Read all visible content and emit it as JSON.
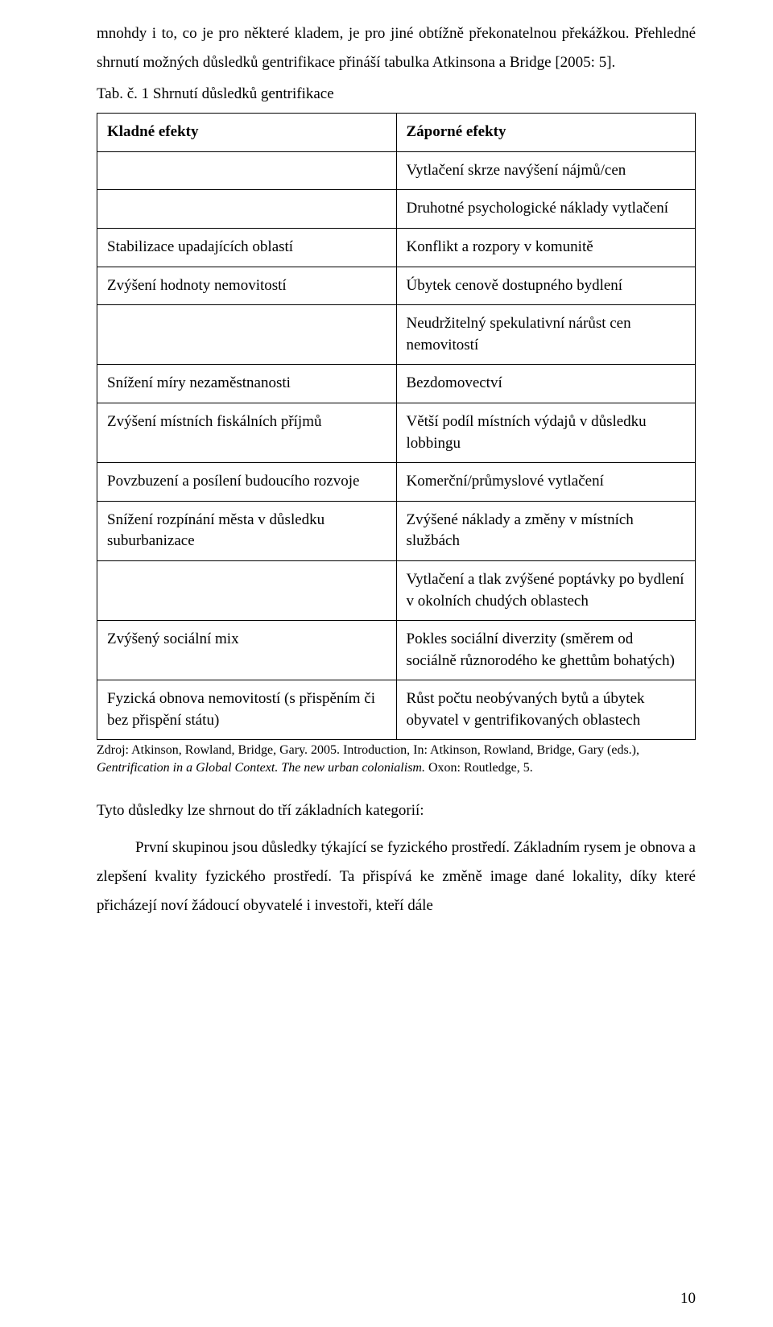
{
  "intro": {
    "p1": "mnohdy i to, co je pro některé kladem, je pro jiné obtížně překonatelnou překážkou. Přehledné shrnutí možných důsledků gentrifikace přináší tabulka Atkinsona a Bridge [2005: 5]."
  },
  "tabcaption": "Tab. č. 1  Shrnutí důsledků gentrifikace",
  "table": {
    "header_left": "Kladné efekty",
    "header_right": "Záporné efekty",
    "rows": [
      {
        "left": "",
        "right": "Vytlačení skrze navýšení nájmů/cen"
      },
      {
        "left": "",
        "right": "Druhotné psychologické náklady vytlačení"
      },
      {
        "left": "Stabilizace upadajících oblastí",
        "right": "Konflikt a rozpory v komunitě"
      },
      {
        "left": "Zvýšení hodnoty nemovitostí",
        "right": "Úbytek cenově dostupného bydlení"
      },
      {
        "left": "",
        "right": "Neudržitelný spekulativní nárůst cen nemovitostí"
      },
      {
        "left": "Snížení míry nezaměstnanosti",
        "right": "Bezdomovectví"
      },
      {
        "left": "Zvýšení místních fiskálních příjmů",
        "right": "Větší podíl místních výdajů v důsledku lobbingu"
      },
      {
        "left": "Povzbuzení a posílení budoucího rozvoje",
        "right": "Komerční/průmyslové vytlačení"
      },
      {
        "left": "Snížení rozpínání města v důsledku suburbanizace",
        "right": "Zvýšené náklady a změny v místních službách"
      },
      {
        "left": "",
        "right": "Vytlačení a tlak zvýšené poptávky po bydlení v okolních chudých oblastech"
      },
      {
        "left": "Zvýšený sociální mix",
        "right": "Pokles sociální diverzity (směrem od sociálně různorodého ke ghettům bohatých)"
      },
      {
        "left": "Fyzická obnova nemovitostí (s přispěním či bez přispění státu)",
        "right": "Růst počtu neobývaných bytů a úbytek obyvatel v gentrifikovaných oblastech"
      }
    ]
  },
  "source": {
    "prefix": "Zdroj: Atkinson, Rowland, Bridge, Gary. 2005. Introduction, In: Atkinson, Rowland, Bridge, Gary (eds.), ",
    "italic": "Gentrification in a Global Context. The new urban colonialism.",
    "suffix": " Oxon: Routledge, 5."
  },
  "outro": {
    "lead": "Tyto důsledky lze shrnout do tří základních kategorií:",
    "p2": "První skupinou jsou důsledky týkající se fyzického prostředí. Základním rysem je obnova a zlepšení kvality fyzického prostředí. Ta přispívá ke změně image dané lokality, díky které přicházejí noví žádoucí obyvatelé i investoři, kteří dále"
  },
  "pagenum": "10"
}
